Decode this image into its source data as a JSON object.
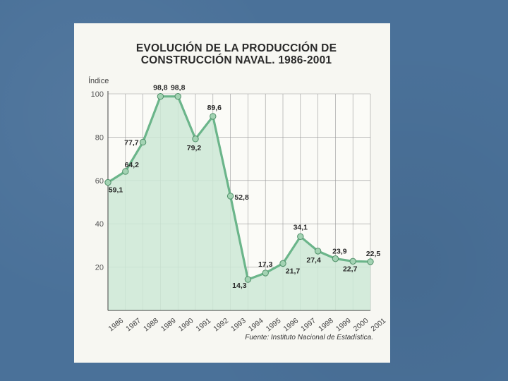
{
  "slide": {
    "source": "Fuente: Instituto Nacional de Estadística."
  },
  "chart_data": {
    "type": "area",
    "title": "EVOLUCIÓN DE LA PRODUCCIÓN DE CONSTRUCCIÓN NAVAL. 1986-2001",
    "title_lines": [
      "EVOLUCIÓN DE LA PRODUCCIÓN DE",
      "CONSTRUCCIÓN NAVAL. 1986-2001"
    ],
    "xlabel": "",
    "ylabel": "Índice",
    "categories": [
      "1986",
      "1987",
      "1988",
      "1989",
      "1990",
      "1991",
      "1992",
      "1993",
      "1994",
      "1995",
      "1996",
      "1997",
      "1998",
      "1999",
      "2000",
      "2001"
    ],
    "values": [
      59.1,
      64.2,
      77.7,
      98.8,
      98.8,
      79.2,
      89.6,
      52.8,
      14.3,
      17.3,
      21.7,
      34.1,
      27.4,
      23.9,
      22.7,
      22.5
    ],
    "labels": [
      "59,1",
      "64,2",
      "77,7",
      "98,8",
      "98,8",
      "79,2",
      "89,6",
      "52,8",
      "14,3",
      "17,3",
      "21,7",
      "34,1",
      "27,4",
      "23,9",
      "22,7",
      "22,5"
    ],
    "yticks": [
      20,
      40,
      60,
      80,
      100
    ],
    "ylim": [
      0,
      100
    ],
    "grid": true,
    "colors": {
      "line": "#6bb58a",
      "area": "#cde8d6",
      "marker": "#a3d3b3",
      "text": "#2a2a2a"
    }
  }
}
